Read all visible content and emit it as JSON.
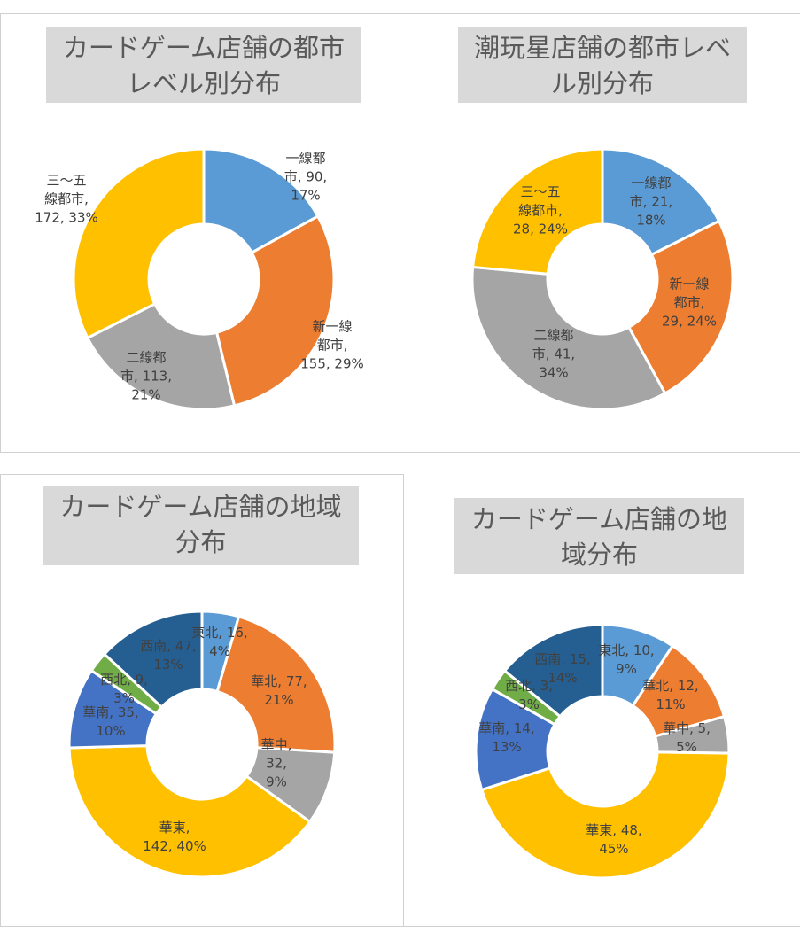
{
  "colors": {
    "blue": "#5B9BD5",
    "orange": "#ED7D31",
    "gray": "#A5A5A5",
    "yellow": "#FFC000",
    "darkblue": "#4472C4",
    "green": "#70AD47",
    "navy": "#255E91"
  },
  "chart_data": [
    {
      "type": "pie",
      "style": "donut",
      "title": "カードゲーム店舗の都市レベル別分布",
      "title_lines": [
        "カードゲーム店舗の都市",
        "レベル別分布"
      ],
      "categories": [
        "一線都市",
        "新一線都市",
        "二線都市",
        "三～五線都市"
      ],
      "values": [
        90,
        155,
        113,
        172
      ],
      "percents": [
        "17%",
        "29%",
        "21%",
        "33%"
      ],
      "label_lines": [
        [
          "一線都",
          "市, 90,",
          "17%"
        ],
        [
          "新一線",
          "都市,",
          "155, 29%"
        ],
        [
          "二線都",
          "市, 113,",
          "21%"
        ],
        [
          "三～五",
          "線都市,",
          "172, 33%"
        ]
      ],
      "colors": [
        "#5B9BD5",
        "#ED7D31",
        "#A5A5A5",
        "#FFC000"
      ]
    },
    {
      "type": "pie",
      "style": "donut",
      "title": "潮玩星店舗の都市レベル別分布",
      "title_lines": [
        "潮玩星店舗の都市レベ",
        "ル別分布"
      ],
      "categories": [
        "一線都市",
        "新一線都市",
        "二線都市",
        "三～五線都市"
      ],
      "values": [
        21,
        29,
        41,
        28
      ],
      "percents": [
        "18%",
        "24%",
        "34%",
        "24%"
      ],
      "label_lines": [
        [
          "一線都",
          "市, 21,",
          "18%"
        ],
        [
          "新一線",
          "都市,",
          "29, 24%"
        ],
        [
          "二線都",
          "市, 41,",
          "34%"
        ],
        [
          "三～五",
          "線都市,",
          "28, 24%"
        ]
      ],
      "colors": [
        "#5B9BD5",
        "#ED7D31",
        "#A5A5A5",
        "#FFC000"
      ]
    },
    {
      "type": "pie",
      "style": "donut",
      "title": "カードゲーム店舗の地域分布",
      "title_lines": [
        "カードゲーム店舗の地域",
        "分布"
      ],
      "categories": [
        "東北",
        "華北",
        "華中",
        "華東",
        "華南",
        "西北",
        "西南"
      ],
      "values": [
        16,
        77,
        32,
        142,
        35,
        9,
        47
      ],
      "percents": [
        "4%",
        "21%",
        "9%",
        "40%",
        "10%",
        "3%",
        "13%"
      ],
      "label_lines": [
        [
          "東北, 16,",
          "4%"
        ],
        [
          "華北, 77,",
          "21%"
        ],
        [
          "華中,",
          "32,",
          "9%"
        ],
        [
          "華東,",
          "142, 40%"
        ],
        [
          "華南, 35,",
          "10%"
        ],
        [
          "西北, 9,",
          "3%"
        ],
        [
          "西南, 47,",
          "13%"
        ]
      ],
      "colors": [
        "#5B9BD5",
        "#ED7D31",
        "#A5A5A5",
        "#FFC000",
        "#4472C4",
        "#70AD47",
        "#255E91"
      ]
    },
    {
      "type": "pie",
      "style": "donut",
      "title": "カードゲーム店舗の地域分布",
      "title_lines": [
        "カードゲーム店舗の地",
        "域分布"
      ],
      "categories": [
        "東北",
        "華北",
        "華中",
        "華東",
        "華南",
        "西北",
        "西南"
      ],
      "values": [
        10,
        12,
        5,
        48,
        14,
        3,
        15
      ],
      "percents": [
        "9%",
        "11%",
        "5%",
        "45%",
        "13%",
        "3%",
        "14%"
      ],
      "label_lines": [
        [
          "東北, 10,",
          "9%"
        ],
        [
          "華北, 12,",
          "11%"
        ],
        [
          "華中, 5,",
          "5%"
        ],
        [
          "華東, 48,",
          "45%"
        ],
        [
          "華南, 14,",
          "13%"
        ],
        [
          "西北, 3,",
          "3%"
        ],
        [
          "西南, 15,",
          "14%"
        ]
      ],
      "colors": [
        "#5B9BD5",
        "#ED7D31",
        "#A5A5A5",
        "#FFC000",
        "#4472C4",
        "#70AD47",
        "#255E91"
      ]
    }
  ]
}
